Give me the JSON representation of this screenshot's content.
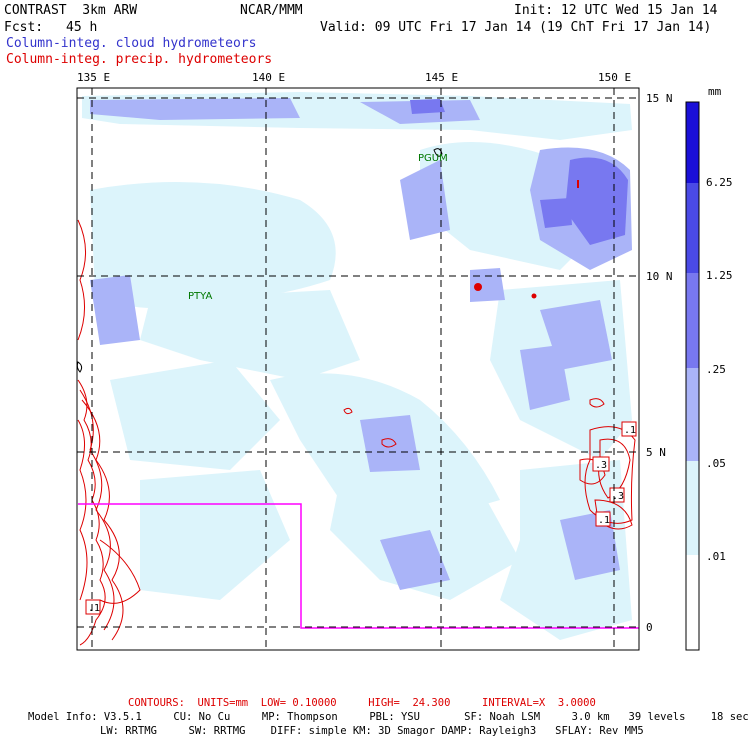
{
  "header": {
    "model_name": "CONTRAST  3km ARW",
    "center": "NCAR/MMM",
    "init": "Init: 12 UTC Wed 15 Jan 14",
    "fcst_label": "Fcst:",
    "fcst_value": "45 h",
    "valid": "Valid: 09 UTC Fri 17 Jan 14 (19 ChT Fri 17 Jan 14)",
    "field1": "Column-integ. cloud hydrometeors",
    "field2": "Column-integ. precip. hydrometeors",
    "field1_color": "#3333cc",
    "field2_color": "#dd0000"
  },
  "map": {
    "lon_labels": [
      "135 E",
      "140 E",
      "145 E",
      "150 E"
    ],
    "lat_labels": [
      "15 N",
      "10 N",
      "5 N",
      "0"
    ],
    "stations": [
      "PGUM",
      "PTYA"
    ],
    "contour_labels": [
      ".1",
      ".3",
      ".3",
      ".1",
      ".1"
    ],
    "box_color": "#ff00ff",
    "contour_color": "#dd0000",
    "grid_style": "dashed"
  },
  "colorbar": {
    "unit": "mm",
    "levels": [
      "6.25",
      "1.25",
      ".25",
      ".05",
      ".01"
    ],
    "colors": [
      "#1a10d8",
      "#4a4ae6",
      "#7878f0",
      "#aab4f8",
      "#dcf4fb",
      "#ffffff"
    ]
  },
  "footer": {
    "contours": "CONTOURS:  UNITS=mm  LOW= 0.10000     HIGH=  24.300     INTERVAL=X  3.0000",
    "line1": "Model Info: V3.5.1     CU: No Cu     MP: Thompson     PBL: YSU       SF: Noah LSM     3.0 km   39 levels    18 sec",
    "line2": "LW: RRTMG     SW: RRTMG    DIFF: simple KM: 3D Smagor DAMP: Rayleigh3   SFLAY: Rev MM5"
  }
}
